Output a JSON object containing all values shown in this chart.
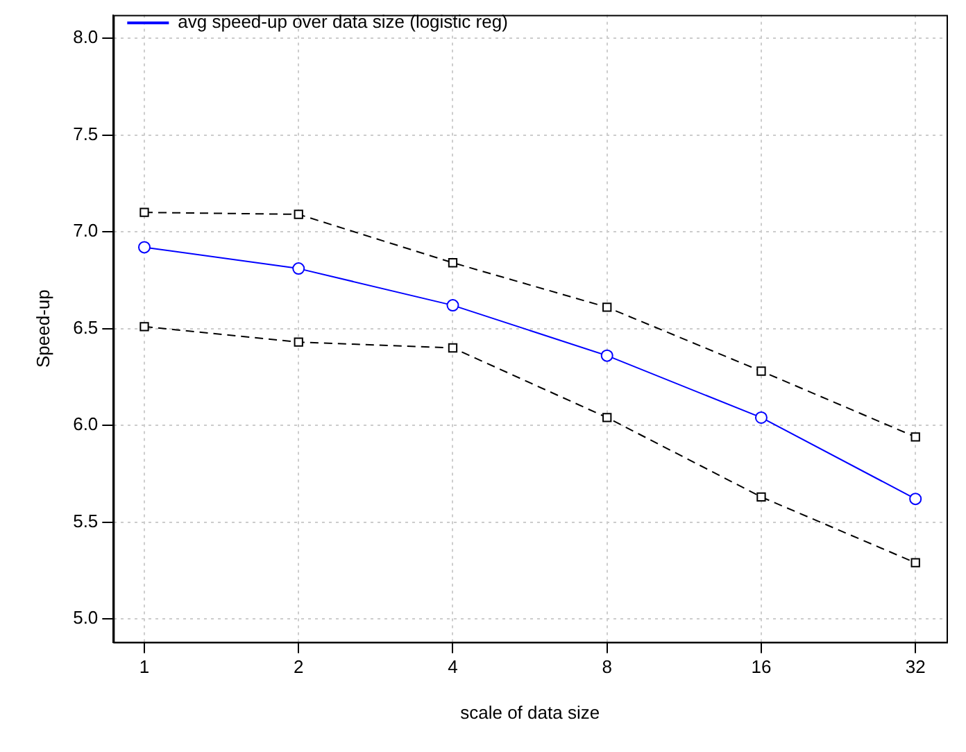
{
  "chart_data": {
    "type": "line",
    "xlabel": "scale of data size",
    "ylabel": "Speed-up",
    "x": [
      1,
      2,
      4,
      8,
      16,
      32
    ],
    "series": [
      {
        "name": "avg speed-up over data size (logistic reg)",
        "color": "#0000ff",
        "marker": "circle",
        "line_style": "solid",
        "values": [
          6.92,
          6.81,
          6.62,
          6.36,
          6.04,
          5.62
        ]
      },
      {
        "color": "#000000",
        "marker": "square",
        "line_style": "dashed",
        "values": [
          7.1,
          7.09,
          6.84,
          6.61,
          6.28,
          5.94
        ]
      },
      {
        "color": "#000000",
        "marker": "square",
        "line_style": "dashed",
        "values": [
          6.51,
          6.43,
          6.4,
          6.04,
          5.63,
          5.29
        ]
      }
    ],
    "log": "x",
    "xlim": [
      0.87,
      36.8
    ],
    "xticks": [
      1,
      2,
      4,
      8,
      16,
      32
    ],
    "ylim": [
      4.88,
      8.12
    ],
    "yticks": [
      {
        "value": 5,
        "label": "5.0"
      },
      {
        "value": 5.5,
        "label": "5.5"
      },
      {
        "value": 6,
        "label": "6.0"
      },
      {
        "value": 6.5,
        "label": "6.5"
      },
      {
        "value": 7,
        "label": "7.0"
      },
      {
        "value": 7.5,
        "label": "7.5"
      },
      {
        "value": 8,
        "label": "8.0"
      }
    ],
    "grid": true,
    "legend": "top left"
  }
}
